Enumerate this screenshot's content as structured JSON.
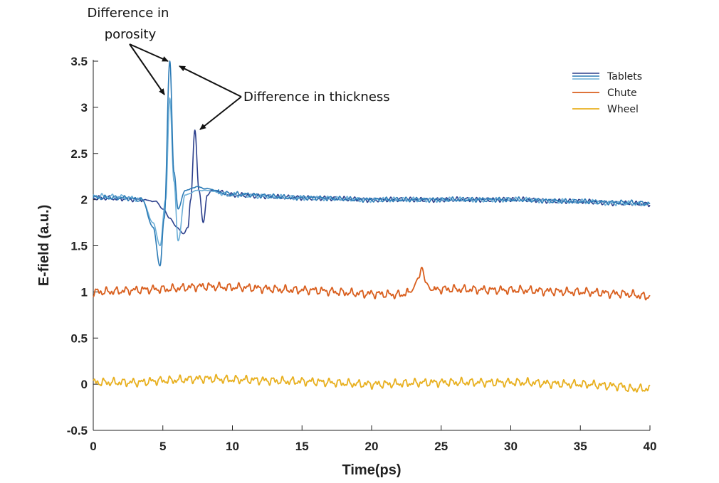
{
  "chart_data": {
    "type": "line",
    "title": "",
    "xlabel": "Time(ps)",
    "ylabel": "E-field (a.u.)",
    "xlim": [
      0,
      40
    ],
    "ylim": [
      -0.5,
      3.6
    ],
    "xticks": [
      0,
      5,
      10,
      15,
      20,
      25,
      30,
      35,
      40
    ],
    "yticks": [
      -0.5,
      0,
      0.5,
      1,
      1.5,
      2,
      2.5,
      3,
      3.5
    ],
    "xtick_labels": [
      "0",
      "5",
      "10",
      "15",
      "20",
      "25",
      "30",
      "35",
      "40"
    ],
    "ytick_labels": [
      "-0.5",
      "0",
      "0.5",
      "1",
      "1.5",
      "2",
      "2.5",
      "3",
      "3.5"
    ],
    "grid": false,
    "legend_position": "top-right",
    "legend": [
      "Tablets",
      "Chute",
      "Wheel"
    ],
    "series": [
      {
        "name": "Tablets",
        "color": "#2c7bb6",
        "x": [
          0,
          2,
          3.5,
          4.3,
          4.8,
          5.1,
          5.5,
          5.8,
          6.1,
          6.6,
          7.5,
          8,
          10,
          15,
          20,
          25,
          30,
          35,
          38,
          40
        ],
        "y": [
          2.02,
          2.02,
          2.0,
          1.7,
          1.28,
          1.8,
          3.5,
          2.3,
          1.9,
          2.1,
          2.14,
          2.12,
          2.06,
          2.02,
          2.0,
          2.0,
          2.0,
          1.98,
          1.97,
          1.96
        ]
      },
      {
        "name": "Tablets",
        "color": "#6baed6",
        "x": [
          0,
          2,
          3.5,
          4.3,
          4.8,
          5.2,
          5.5,
          5.8,
          6.1,
          6.6,
          7.5,
          8,
          10,
          15,
          20,
          25,
          30,
          35,
          38,
          40
        ],
        "y": [
          2.04,
          2.03,
          2.0,
          1.75,
          1.5,
          2.0,
          3.1,
          2.2,
          1.55,
          2.05,
          2.1,
          2.1,
          2.05,
          2.02,
          2.0,
          2.0,
          2.0,
          1.98,
          1.96,
          1.95
        ]
      },
      {
        "name": "Tablets",
        "color": "#2b3f8c",
        "x": [
          0,
          2,
          3.5,
          4.5,
          5.0,
          5.5,
          6.0,
          6.5,
          6.8,
          7.0,
          7.3,
          7.6,
          7.9,
          8.2,
          8.5,
          10,
          15,
          20,
          25,
          30,
          35,
          38,
          40
        ],
        "y": [
          2.02,
          2.01,
          2.0,
          1.98,
          1.9,
          1.8,
          1.7,
          1.63,
          1.7,
          2.0,
          2.75,
          2.1,
          1.75,
          2.05,
          2.1,
          2.05,
          2.02,
          2.0,
          2.0,
          2.0,
          1.98,
          1.96,
          1.95
        ]
      },
      {
        "name": "Chute",
        "color": "#d95f1e",
        "x": [
          0,
          5,
          8,
          10,
          15,
          20,
          22,
          22.8,
          23.4,
          23.6,
          23.9,
          24.3,
          25,
          30,
          35,
          38,
          40
        ],
        "y": [
          1.0,
          1.03,
          1.06,
          1.05,
          1.02,
          0.98,
          0.97,
          1.0,
          1.15,
          1.27,
          1.1,
          1.02,
          1.03,
          1.02,
          1.0,
          0.98,
          0.95
        ]
      },
      {
        "name": "Wheel",
        "color": "#e8b020",
        "x": [
          0,
          3,
          5,
          8,
          10,
          15,
          20,
          25,
          30,
          35,
          38,
          38.5,
          40
        ],
        "y": [
          0.02,
          0.02,
          0.04,
          0.06,
          0.05,
          0.03,
          0.0,
          0.02,
          0.02,
          0.0,
          -0.02,
          -0.05,
          -0.05
        ]
      }
    ],
    "annotations": [
      {
        "text": "Difference in",
        "text2": "porosity",
        "arrows_to": [
          [
            5.5,
            3.5
          ],
          [
            5.2,
            3.05
          ]
        ]
      },
      {
        "text": "Difference in thickness",
        "arrows_to": [
          [
            6.2,
            3.45
          ],
          [
            7.8,
            2.78
          ]
        ]
      }
    ]
  }
}
